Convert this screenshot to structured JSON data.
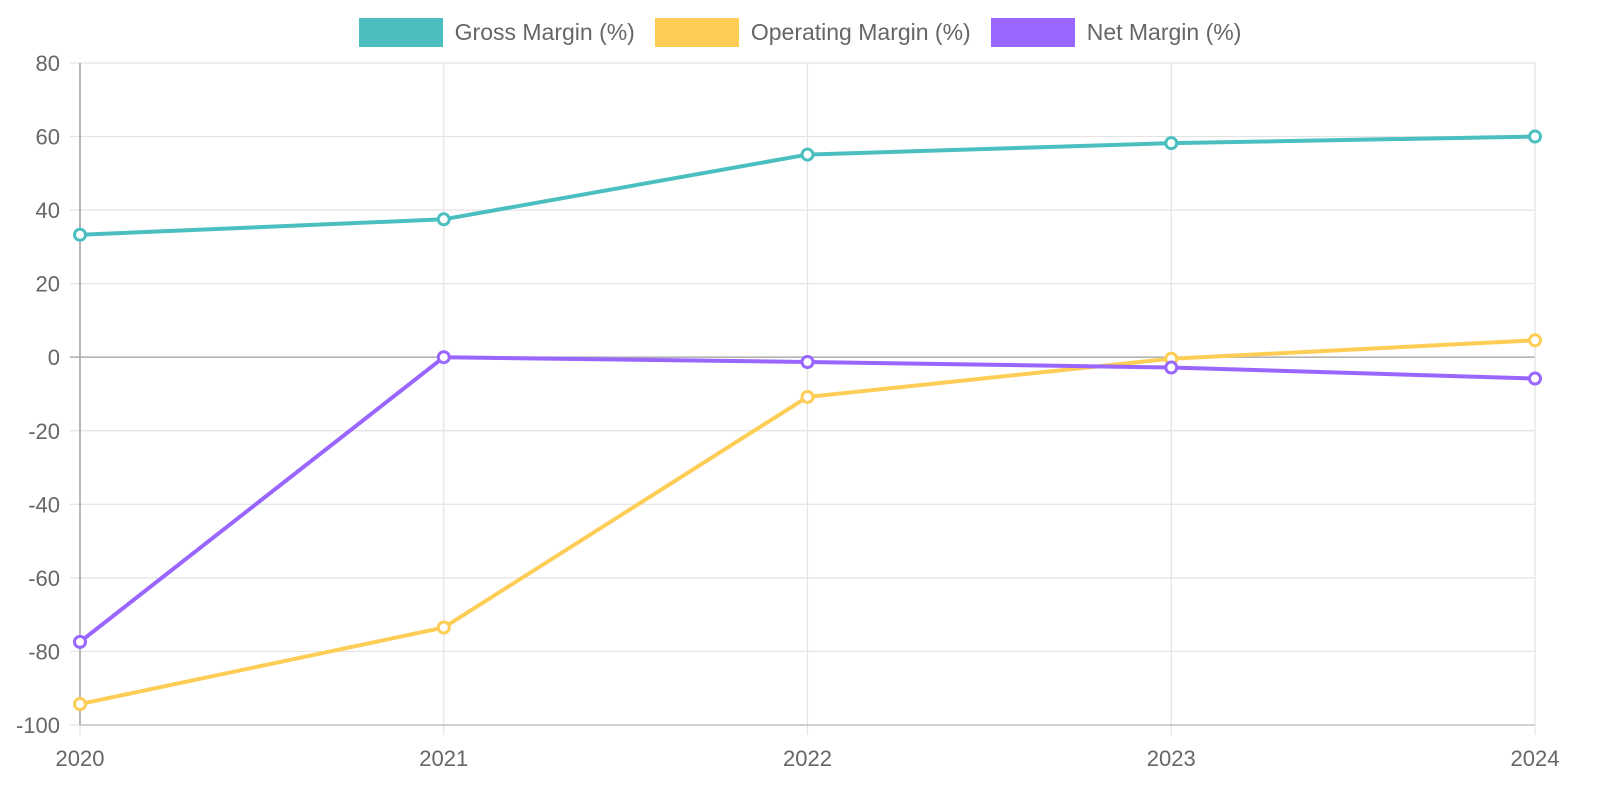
{
  "chart_data": {
    "type": "line",
    "categories": [
      "2020",
      "2021",
      "2022",
      "2023",
      "2024"
    ],
    "series": [
      {
        "name": "Gross Margin (%)",
        "color": "#4BBFBF",
        "values": [
          33.3,
          37.5,
          55.1,
          58.2,
          60.0
        ]
      },
      {
        "name": "Operating Margin (%)",
        "color": "#FDCD56",
        "values": [
          -94.3,
          -73.5,
          -10.8,
          -0.4,
          4.6
        ]
      },
      {
        "name": "Net Margin (%)",
        "color": "#9966FF",
        "values": [
          -77.4,
          0.0,
          -1.3,
          -2.8,
          -5.8
        ]
      }
    ],
    "ylim": [
      -100,
      80
    ],
    "yticks": [
      80,
      60,
      40,
      20,
      0,
      -20,
      -40,
      -60,
      -80,
      -100
    ],
    "legend_position": "top-center",
    "grid": true,
    "title": "",
    "xlabel": "",
    "ylabel": ""
  }
}
